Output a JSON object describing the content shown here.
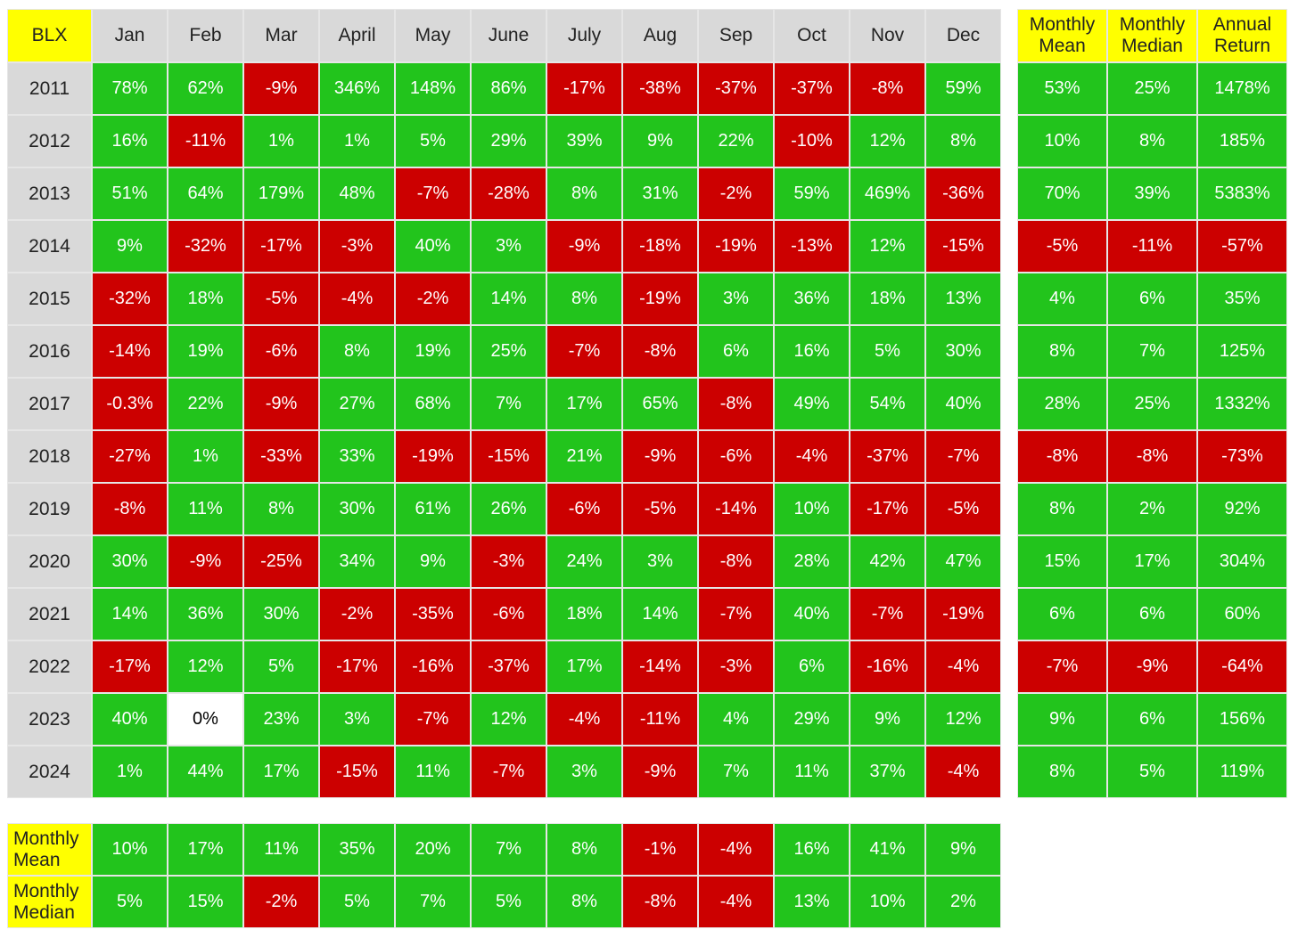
{
  "chart_data": {
    "type": "table",
    "corner_label": "BLX",
    "months": [
      "Jan",
      "Feb",
      "Mar",
      "April",
      "May",
      "June",
      "July",
      "Aug",
      "Sep",
      "Oct",
      "Nov",
      "Dec"
    ],
    "summary_headers": [
      "Monthly Mean",
      "Monthly Median",
      "Annual Return"
    ],
    "years": [
      {
        "year": "2011",
        "values": [
          "78%",
          "62%",
          "-9%",
          "346%",
          "148%",
          "86%",
          "-17%",
          "-38%",
          "-37%",
          "-37%",
          "-8%",
          "59%"
        ],
        "summary": [
          "53%",
          "25%",
          "1478%"
        ]
      },
      {
        "year": "2012",
        "values": [
          "16%",
          "-11%",
          "1%",
          "1%",
          "5%",
          "29%",
          "39%",
          "9%",
          "22%",
          "-10%",
          "12%",
          "8%"
        ],
        "summary": [
          "10%",
          "8%",
          "185%"
        ]
      },
      {
        "year": "2013",
        "values": [
          "51%",
          "64%",
          "179%",
          "48%",
          "-7%",
          "-28%",
          "8%",
          "31%",
          "-2%",
          "59%",
          "469%",
          "-36%"
        ],
        "summary": [
          "70%",
          "39%",
          "5383%"
        ]
      },
      {
        "year": "2014",
        "values": [
          "9%",
          "-32%",
          "-17%",
          "-3%",
          "40%",
          "3%",
          "-9%",
          "-18%",
          "-19%",
          "-13%",
          "12%",
          "-15%"
        ],
        "summary": [
          "-5%",
          "-11%",
          "-57%"
        ]
      },
      {
        "year": "2015",
        "values": [
          "-32%",
          "18%",
          "-5%",
          "-4%",
          "-2%",
          "14%",
          "8%",
          "-19%",
          "3%",
          "36%",
          "18%",
          "13%"
        ],
        "summary": [
          "4%",
          "6%",
          "35%"
        ]
      },
      {
        "year": "2016",
        "values": [
          "-14%",
          "19%",
          "-6%",
          "8%",
          "19%",
          "25%",
          "-7%",
          "-8%",
          "6%",
          "16%",
          "5%",
          "30%"
        ],
        "summary": [
          "8%",
          "7%",
          "125%"
        ]
      },
      {
        "year": "2017",
        "values": [
          "-0.3%",
          "22%",
          "-9%",
          "27%",
          "68%",
          "7%",
          "17%",
          "65%",
          "-8%",
          "49%",
          "54%",
          "40%"
        ],
        "summary": [
          "28%",
          "25%",
          "1332%"
        ]
      },
      {
        "year": "2018",
        "values": [
          "-27%",
          "1%",
          "-33%",
          "33%",
          "-19%",
          "-15%",
          "21%",
          "-9%",
          "-6%",
          "-4%",
          "-37%",
          "-7%"
        ],
        "summary": [
          "-8%",
          "-8%",
          "-73%"
        ]
      },
      {
        "year": "2019",
        "values": [
          "-8%",
          "11%",
          "8%",
          "30%",
          "61%",
          "26%",
          "-6%",
          "-5%",
          "-14%",
          "10%",
          "-17%",
          "-5%"
        ],
        "summary": [
          "8%",
          "2%",
          "92%"
        ]
      },
      {
        "year": "2020",
        "values": [
          "30%",
          "-9%",
          "-25%",
          "34%",
          "9%",
          "-3%",
          "24%",
          "3%",
          "-8%",
          "28%",
          "42%",
          "47%"
        ],
        "summary": [
          "15%",
          "17%",
          "304%"
        ]
      },
      {
        "year": "2021",
        "values": [
          "14%",
          "36%",
          "30%",
          "-2%",
          "-35%",
          "-6%",
          "18%",
          "14%",
          "-7%",
          "40%",
          "-7%",
          "-19%"
        ],
        "summary": [
          "6%",
          "6%",
          "60%"
        ]
      },
      {
        "year": "2022",
        "values": [
          "-17%",
          "12%",
          "5%",
          "-17%",
          "-16%",
          "-37%",
          "17%",
          "-14%",
          "-3%",
          "6%",
          "-16%",
          "-4%"
        ],
        "summary": [
          "-7%",
          "-9%",
          "-64%"
        ]
      },
      {
        "year": "2023",
        "values": [
          "40%",
          "0%",
          "23%",
          "3%",
          "-7%",
          "12%",
          "-4%",
          "-11%",
          "4%",
          "29%",
          "9%",
          "12%"
        ],
        "summary": [
          "9%",
          "6%",
          "156%"
        ]
      },
      {
        "year": "2024",
        "values": [
          "1%",
          "44%",
          "17%",
          "-15%",
          "11%",
          "-7%",
          "3%",
          "-9%",
          "7%",
          "11%",
          "37%",
          "-4%"
        ],
        "summary": [
          "8%",
          "5%",
          "119%"
        ]
      }
    ],
    "footer_rows": [
      {
        "label": "Monthly Mean",
        "values": [
          "10%",
          "17%",
          "11%",
          "35%",
          "20%",
          "7%",
          "8%",
          "-1%",
          "-4%",
          "16%",
          "41%",
          "9%"
        ]
      },
      {
        "label": "Monthly Median",
        "values": [
          "5%",
          "15%",
          "-2%",
          "5%",
          "7%",
          "5%",
          "8%",
          "-8%",
          "-4%",
          "13%",
          "10%",
          "2%"
        ]
      }
    ],
    "colors": {
      "positive": "#22c41c",
      "negative": "#cc0000",
      "zero": "#ffffff",
      "header": "#d9d9d9",
      "highlight": "#ffff00"
    }
  }
}
